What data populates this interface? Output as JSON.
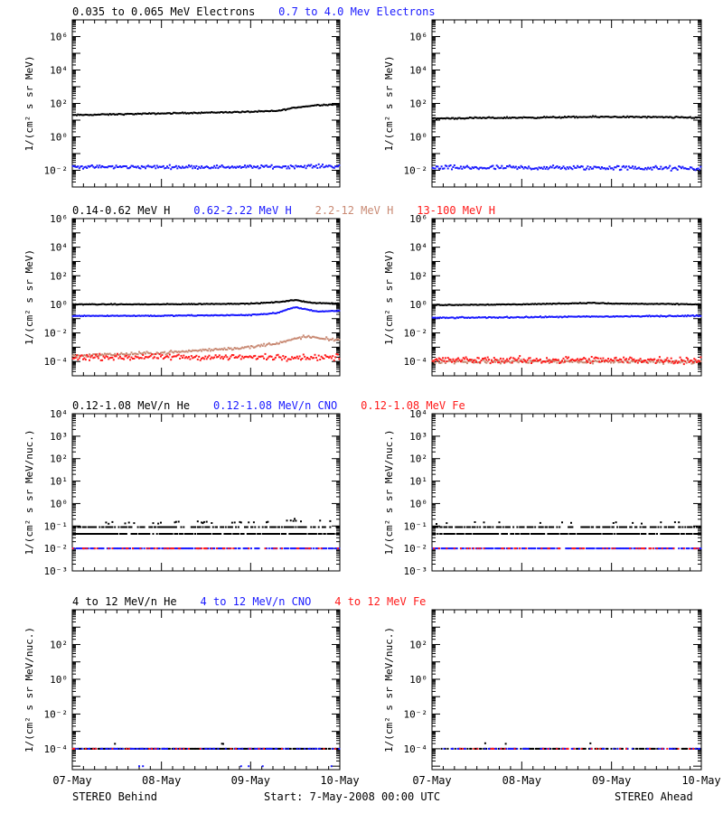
{
  "colors": {
    "black": "#000000",
    "blue": "#1a1aff",
    "tan": "#c98a74",
    "red": "#ff1a1a"
  },
  "footer": {
    "left": "STEREO Behind",
    "center": "Start:  7-May-2008 00:00 UTC",
    "right": "STEREO Ahead"
  },
  "chart_data": [
    {
      "type": "scatter",
      "panel": "electrons",
      "legend": [
        {
          "text": "0.035 to 0.065 MeV Electrons",
          "color": "#000000"
        },
        {
          "text": "0.7 to 4.0 Mev Electrons",
          "color": "#1a1aff"
        }
      ],
      "ylabel": "1/(cm² s sr MeV)",
      "yscale": "log",
      "ylim_exp": [
        -3,
        7
      ],
      "yticks": [
        {
          "exp": -2,
          "label": "10⁻²"
        },
        {
          "exp": 0,
          "label": "10⁰"
        },
        {
          "exp": 2,
          "label": "10²"
        },
        {
          "exp": 4,
          "label": "10⁴"
        },
        {
          "exp": 6,
          "label": "10⁶"
        }
      ],
      "x_categories": [
        "07-May",
        "08-May",
        "09-May",
        "10-May"
      ],
      "xlim_days": [
        0,
        3
      ],
      "behind": [
        {
          "name": "0.035 to 0.065 MeV Electrons",
          "color": "#000000",
          "x": [
            0,
            0.5,
            1.0,
            1.5,
            2.0,
            2.3,
            2.5,
            2.75,
            3.0
          ],
          "log10_y": [
            1.3,
            1.35,
            1.4,
            1.45,
            1.5,
            1.55,
            1.75,
            1.9,
            1.95
          ],
          "scatter": 0.05,
          "dots": 1.0
        },
        {
          "name": "0.7 to 4.0 Mev Electrons",
          "color": "#1a1aff",
          "x": [
            0,
            1.0,
            2.0,
            3.0
          ],
          "log10_y": [
            -1.8,
            -1.8,
            -1.8,
            -1.75
          ],
          "scatter": 0.15,
          "dots": 1.0
        }
      ],
      "ahead": [
        {
          "name": "0.035 to 0.065 MeV Electrons",
          "color": "#000000",
          "x": [
            0,
            1.0,
            2.0,
            3.0
          ],
          "log10_y": [
            1.1,
            1.15,
            1.2,
            1.15
          ],
          "scatter": 0.06,
          "dots": 1.0
        },
        {
          "name": "0.7 to 4.0 Mev Electrons",
          "color": "#1a1aff",
          "x": [
            0,
            1.0,
            2.0,
            3.0
          ],
          "log10_y": [
            -1.85,
            -1.85,
            -1.85,
            -1.9
          ],
          "scatter": 0.2,
          "dots": 1.0
        }
      ]
    },
    {
      "type": "scatter",
      "panel": "protons",
      "legend": [
        {
          "text": "0.14-0.62 MeV H",
          "color": "#000000"
        },
        {
          "text": "0.62-2.22 MeV H",
          "color": "#1a1aff"
        },
        {
          "text": "2.2-12 MeV H",
          "color": "#c98a74"
        },
        {
          "text": "13-100 MeV H",
          "color": "#ff1a1a"
        }
      ],
      "ylabel": "1/(cm² s sr MeV)",
      "yscale": "log",
      "ylim_exp": [
        -5,
        6
      ],
      "yticks": [
        {
          "exp": -4,
          "label": "10⁻⁴"
        },
        {
          "exp": -2,
          "label": "10⁻²"
        },
        {
          "exp": 0,
          "label": "10⁰"
        },
        {
          "exp": 2,
          "label": "10²"
        },
        {
          "exp": 4,
          "label": "10⁴"
        },
        {
          "exp": 6,
          "label": "10⁶"
        }
      ],
      "x_categories": [
        "07-May",
        "08-May",
        "09-May",
        "10-May"
      ],
      "xlim_days": [
        0,
        3
      ],
      "behind": [
        {
          "name": "0.14-0.62 MeV H",
          "color": "#000000",
          "x": [
            0,
            1.0,
            2.0,
            2.3,
            2.5,
            2.7,
            3.0
          ],
          "log10_y": [
            0.0,
            0.0,
            0.05,
            0.15,
            0.3,
            0.1,
            0.05
          ],
          "scatter": 0.04,
          "dots": 1.0
        },
        {
          "name": "0.62-2.22 MeV H",
          "color": "#1a1aff",
          "x": [
            0,
            1.0,
            2.0,
            2.3,
            2.5,
            2.75,
            3.0
          ],
          "log10_y": [
            -0.8,
            -0.8,
            -0.75,
            -0.6,
            -0.2,
            -0.5,
            -0.45
          ],
          "scatter": 0.05,
          "dots": 1.0
        },
        {
          "name": "2.2-12 MeV H",
          "color": "#c98a74",
          "x": [
            0,
            1.0,
            1.5,
            2.0,
            2.4,
            2.6,
            2.8,
            3.0
          ],
          "log10_y": [
            -3.6,
            -3.4,
            -3.2,
            -3.0,
            -2.6,
            -2.25,
            -2.4,
            -2.5
          ],
          "scatter": 0.15,
          "dots": 1.0
        },
        {
          "name": "13-100 MeV H",
          "color": "#ff1a1a",
          "x": [
            0,
            1.0,
            2.0,
            3.0
          ],
          "log10_y": [
            -3.7,
            -3.7,
            -3.7,
            -3.7
          ],
          "scatter": 0.3,
          "dots": 1.0
        }
      ],
      "ahead": [
        {
          "name": "0.14-0.62 MeV H",
          "color": "#000000",
          "x": [
            0,
            1.0,
            1.8,
            2.0,
            3.0
          ],
          "log10_y": [
            -0.05,
            0.0,
            0.1,
            0.05,
            0.0
          ],
          "scatter": 0.04,
          "dots": 1.0
        },
        {
          "name": "0.62-2.22 MeV H",
          "color": "#1a1aff",
          "x": [
            0,
            1.0,
            2.0,
            3.0
          ],
          "log10_y": [
            -0.95,
            -0.9,
            -0.85,
            -0.8
          ],
          "scatter": 0.06,
          "dots": 1.0
        },
        {
          "name": "2.2-12 MeV H",
          "color": "#c98a74",
          "x": [
            0,
            1.0,
            2.0,
            3.0
          ],
          "log10_y": [
            -4.0,
            -4.0,
            -4.0,
            -4.0
          ],
          "scatter": 0.2,
          "dots": 1.0
        },
        {
          "name": "13-100 MeV H",
          "color": "#ff1a1a",
          "x": [
            0,
            1.0,
            2.0,
            3.0
          ],
          "log10_y": [
            -3.9,
            -3.9,
            -3.9,
            -3.9
          ],
          "scatter": 0.35,
          "dots": 1.0
        }
      ]
    },
    {
      "type": "scatter",
      "panel": "heavy-ions-low",
      "legend": [
        {
          "text": "0.12-1.08 MeV/n He",
          "color": "#000000"
        },
        {
          "text": "0.12-1.08 MeV/n CNO",
          "color": "#1a1aff"
        },
        {
          "text": "0.12-1.08 MeV Fe",
          "color": "#ff1a1a"
        }
      ],
      "ylabel": "1/(cm² s sr MeV/nuc.)",
      "yscale": "log",
      "ylim_exp": [
        -3,
        4
      ],
      "yticks": [
        {
          "exp": -3,
          "label": "10⁻³"
        },
        {
          "exp": -2,
          "label": "10⁻²"
        },
        {
          "exp": -1,
          "label": "10⁻¹"
        },
        {
          "exp": 0,
          "label": "10⁰"
        },
        {
          "exp": 1,
          "label": "10¹"
        },
        {
          "exp": 2,
          "label": "10²"
        },
        {
          "exp": 3,
          "label": "10³"
        },
        {
          "exp": 4,
          "label": "10⁴"
        }
      ],
      "x_categories": [
        "07-May",
        "08-May",
        "09-May",
        "10-May"
      ],
      "xlim_days": [
        0,
        3
      ],
      "behind": [
        {
          "name": "0.12-1.08 MeV/n He",
          "color": "#000000",
          "x": [
            0,
            3.0
          ],
          "log10_y": [
            -1.35,
            -1.35
          ],
          "scatter": 0.0,
          "dots": 0.85
        },
        {
          "name": "0.12-1.08 MeV/n He",
          "color": "#000000",
          "x": [
            0,
            3.0
          ],
          "log10_y": [
            -1.05,
            -1.05
          ],
          "scatter": 0.0,
          "dots": 0.6
        },
        {
          "name": "0.12-1.08 MeV/n He",
          "color": "#000000",
          "x": [
            0,
            1.0,
            2.0,
            2.5,
            3.0
          ],
          "log10_y": [
            -0.85,
            -0.85,
            -0.85,
            -0.75,
            -0.75
          ],
          "scatter": 0.08,
          "dots": 0.12
        },
        {
          "name": "0.12-1.08 MeV/n CNO",
          "color": "#1a1aff",
          "x": [
            0,
            3.0
          ],
          "log10_y": [
            -2.0,
            -2.0
          ],
          "scatter": 0.0,
          "dots": 0.7
        },
        {
          "name": "0.12-1.08 MeV Fe",
          "color": "#ff1a1a",
          "x": [
            0,
            3.0
          ],
          "log10_y": [
            -2.0,
            -2.0
          ],
          "scatter": 0.0,
          "dots": 0.25
        }
      ],
      "ahead": [
        {
          "name": "0.12-1.08 MeV/n He",
          "color": "#000000",
          "x": [
            0,
            3.0
          ],
          "log10_y": [
            -1.35,
            -1.35
          ],
          "scatter": 0.0,
          "dots": 0.85
        },
        {
          "name": "0.12-1.08 MeV/n He",
          "color": "#000000",
          "x": [
            0,
            3.0
          ],
          "log10_y": [
            -1.05,
            -1.05
          ],
          "scatter": 0.0,
          "dots": 0.55
        },
        {
          "name": "0.12-1.08 MeV/n He",
          "color": "#000000",
          "x": [
            0,
            3.0
          ],
          "log10_y": [
            -0.85,
            -0.85
          ],
          "scatter": 0.08,
          "dots": 0.06
        },
        {
          "name": "0.12-1.08 MeV/n CNO",
          "color": "#1a1aff",
          "x": [
            0,
            3.0
          ],
          "log10_y": [
            -2.0,
            -2.0
          ],
          "scatter": 0.0,
          "dots": 0.7
        },
        {
          "name": "0.12-1.08 MeV Fe",
          "color": "#ff1a1a",
          "x": [
            0,
            3.0
          ],
          "log10_y": [
            -2.0,
            -2.0
          ],
          "scatter": 0.0,
          "dots": 0.25
        }
      ]
    },
    {
      "type": "scatter",
      "panel": "heavy-ions-high",
      "legend": [
        {
          "text": "4 to 12 MeV/n He",
          "color": "#000000"
        },
        {
          "text": "4 to 12 MeV/n CNO",
          "color": "#1a1aff"
        },
        {
          "text": "4 to 12 MeV Fe",
          "color": "#ff1a1a"
        }
      ],
      "ylabel": "1/(cm² s sr MeV/nuc.)",
      "yscale": "log",
      "ylim_exp": [
        -5.2,
        4
      ],
      "yticks": [
        {
          "exp": -4,
          "label": "10⁻⁴"
        },
        {
          "exp": -2,
          "label": "10⁻²"
        },
        {
          "exp": 0,
          "label": "10⁰"
        },
        {
          "exp": 2,
          "label": "10²"
        }
      ],
      "x_categories": [
        "07-May",
        "08-May",
        "09-May",
        "10-May"
      ],
      "xlim_days": [
        0,
        3
      ],
      "behind": [
        {
          "name": "4 to 12 MeV/n He",
          "color": "#000000",
          "x": [
            0,
            3.0
          ],
          "log10_y": [
            -4.0,
            -4.0
          ],
          "scatter": 0.0,
          "dots": 0.8
        },
        {
          "name": "4 to 12 MeV/n He",
          "color": "#000000",
          "x": [
            0,
            3.0
          ],
          "log10_y": [
            -3.7,
            -3.7
          ],
          "scatter": 0.05,
          "dots": 0.03
        },
        {
          "name": "4 to 12 MeV/n CNO",
          "color": "#1a1aff",
          "x": [
            0,
            3.0
          ],
          "log10_y": [
            -4.0,
            -4.0
          ],
          "scatter": 0.0,
          "dots": 0.35
        },
        {
          "name": "4 to 12 MeV/n CNO",
          "color": "#1a1aff",
          "x": [
            0,
            3.0
          ],
          "log10_y": [
            -5.0,
            -5.0
          ],
          "scatter": 0.0,
          "dots": 0.03
        },
        {
          "name": "4 to 12 MeV Fe",
          "color": "#ff1a1a",
          "x": [
            0,
            3.0
          ],
          "log10_y": [
            -4.0,
            -4.0
          ],
          "scatter": 0.0,
          "dots": 0.1
        }
      ],
      "ahead": [
        {
          "name": "4 to 12 MeV/n He",
          "color": "#000000",
          "x": [
            0.1,
            3.0
          ],
          "log10_y": [
            -4.0,
            -4.0
          ],
          "scatter": 0.0,
          "dots": 0.6
        },
        {
          "name": "4 to 12 MeV/n He",
          "color": "#000000",
          "x": [
            0,
            3.0
          ],
          "log10_y": [
            -3.7,
            -3.7
          ],
          "scatter": 0.05,
          "dots": 0.02
        },
        {
          "name": "4 to 12 MeV/n CNO",
          "color": "#1a1aff",
          "x": [
            0.1,
            3.0
          ],
          "log10_y": [
            -4.0,
            -4.0
          ],
          "scatter": 0.0,
          "dots": 0.3
        },
        {
          "name": "4 to 12 MeV Fe",
          "color": "#ff1a1a",
          "x": [
            0.1,
            3.0
          ],
          "log10_y": [
            -4.0,
            -4.0
          ],
          "scatter": 0.0,
          "dots": 0.1
        }
      ]
    }
  ]
}
